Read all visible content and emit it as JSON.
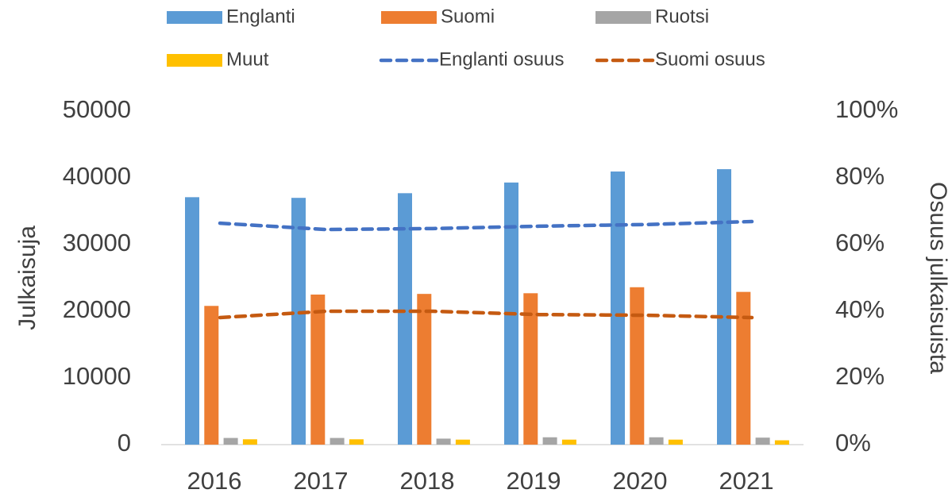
{
  "chart_data": {
    "type": "bar-line",
    "categories": [
      "2016",
      "2017",
      "2018",
      "2019",
      "2020",
      "2021"
    ],
    "y_label": "Julkaisuja",
    "y2_label": "Osuus julkaisuista",
    "ylim": [
      0,
      50000
    ],
    "yticks": [
      0,
      10000,
      20000,
      30000,
      40000,
      50000
    ],
    "y2lim": [
      0,
      100
    ],
    "y2ticks": [
      {
        "value": 0,
        "label": "0%"
      },
      {
        "value": 20,
        "label": "20%"
      },
      {
        "value": 40,
        "label": "40%"
      },
      {
        "value": 60,
        "label": "60%"
      },
      {
        "value": 80,
        "label": "80%"
      },
      {
        "value": 100,
        "label": "100%"
      }
    ],
    "series": [
      {
        "name": "Englanti",
        "kind": "bar",
        "color": "#5b9bd5",
        "values": [
          37100,
          37000,
          37700,
          39300,
          40950,
          41300
        ]
      },
      {
        "name": "Suomi",
        "kind": "bar",
        "color": "#ed7d31",
        "values": [
          20800,
          22500,
          22600,
          22700,
          23600,
          22900
        ]
      },
      {
        "name": "Ruotsi",
        "kind": "bar",
        "color": "#a5a5a5",
        "values": [
          1000,
          1000,
          900,
          1100,
          1100,
          1050
        ]
      },
      {
        "name": "Muut",
        "kind": "bar",
        "color": "#ffc000",
        "values": [
          800,
          800,
          750,
          750,
          750,
          650
        ]
      },
      {
        "name": "Englanti osuus",
        "kind": "line",
        "axis": "y2",
        "color": "#4472c4",
        "values": [
          66.4,
          64.5,
          64.8,
          65.5,
          66.0,
          66.9
        ]
      },
      {
        "name": "Suomi osuus",
        "kind": "line",
        "axis": "y2",
        "color": "#c55a11",
        "values": [
          38.1,
          40.0,
          40.0,
          39.0,
          38.8,
          38.1
        ]
      }
    ]
  }
}
